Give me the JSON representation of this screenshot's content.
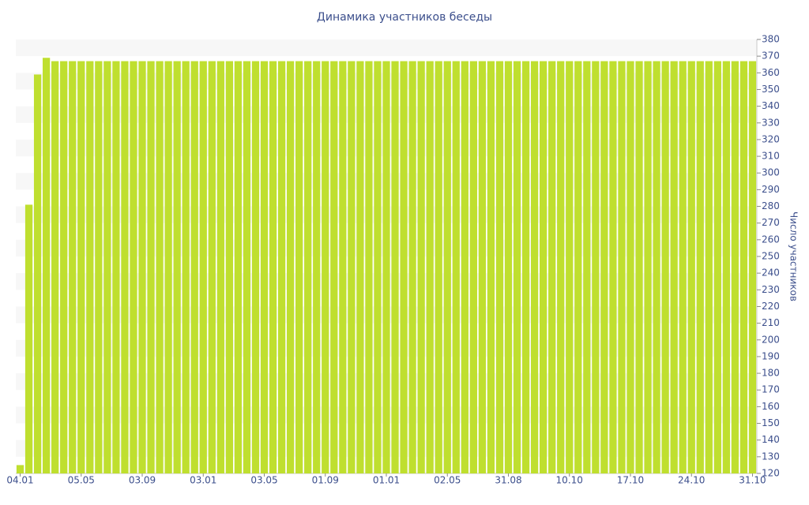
{
  "chart_data": {
    "type": "bar",
    "title": "Динамика участников беседы",
    "y_axis_label": "Число участников",
    "color": "#bfdf2f",
    "categories": [
      "04.01",
      null,
      null,
      null,
      null,
      null,
      null,
      "05.05",
      null,
      null,
      null,
      null,
      null,
      null,
      "03.09",
      null,
      null,
      null,
      null,
      null,
      null,
      "03.01",
      null,
      null,
      null,
      null,
      null,
      null,
      "03.05",
      null,
      null,
      null,
      null,
      null,
      null,
      "01.09",
      null,
      null,
      null,
      null,
      null,
      null,
      "01.01",
      null,
      null,
      null,
      null,
      null,
      null,
      "02.05",
      null,
      null,
      null,
      null,
      null,
      null,
      "31.08",
      null,
      null,
      null,
      null,
      null,
      null,
      "10.10",
      null,
      null,
      null,
      null,
      null,
      null,
      "17.10",
      null,
      null,
      null,
      null,
      null,
      null,
      "24.10",
      null,
      null,
      null,
      null,
      null,
      null,
      "31.10"
    ],
    "values": [
      125,
      281,
      359,
      369,
      367,
      367,
      367,
      367,
      367,
      367,
      367,
      367,
      367,
      367,
      367,
      367,
      367,
      367,
      367,
      367,
      367,
      367,
      367,
      367,
      367,
      367,
      367,
      367,
      367,
      367,
      367,
      367,
      367,
      367,
      367,
      367,
      367,
      367,
      367,
      367,
      367,
      367,
      367,
      367,
      367,
      367,
      367,
      367,
      367,
      367,
      367,
      367,
      367,
      367,
      367,
      367,
      367,
      367,
      367,
      367,
      367,
      367,
      367,
      367,
      367,
      367,
      367,
      367,
      367,
      367,
      367,
      367,
      367,
      367,
      367,
      367,
      367,
      367,
      367,
      367,
      367,
      367,
      367,
      367,
      367
    ],
    "ylim": [
      120,
      380
    ],
    "yticks": [
      120,
      130,
      140,
      150,
      160,
      170,
      180,
      190,
      200,
      210,
      220,
      230,
      240,
      250,
      260,
      270,
      280,
      290,
      300,
      310,
      320,
      330,
      340,
      350,
      360,
      370,
      380
    ],
    "y_axis_side": "right",
    "grid": "bands"
  }
}
